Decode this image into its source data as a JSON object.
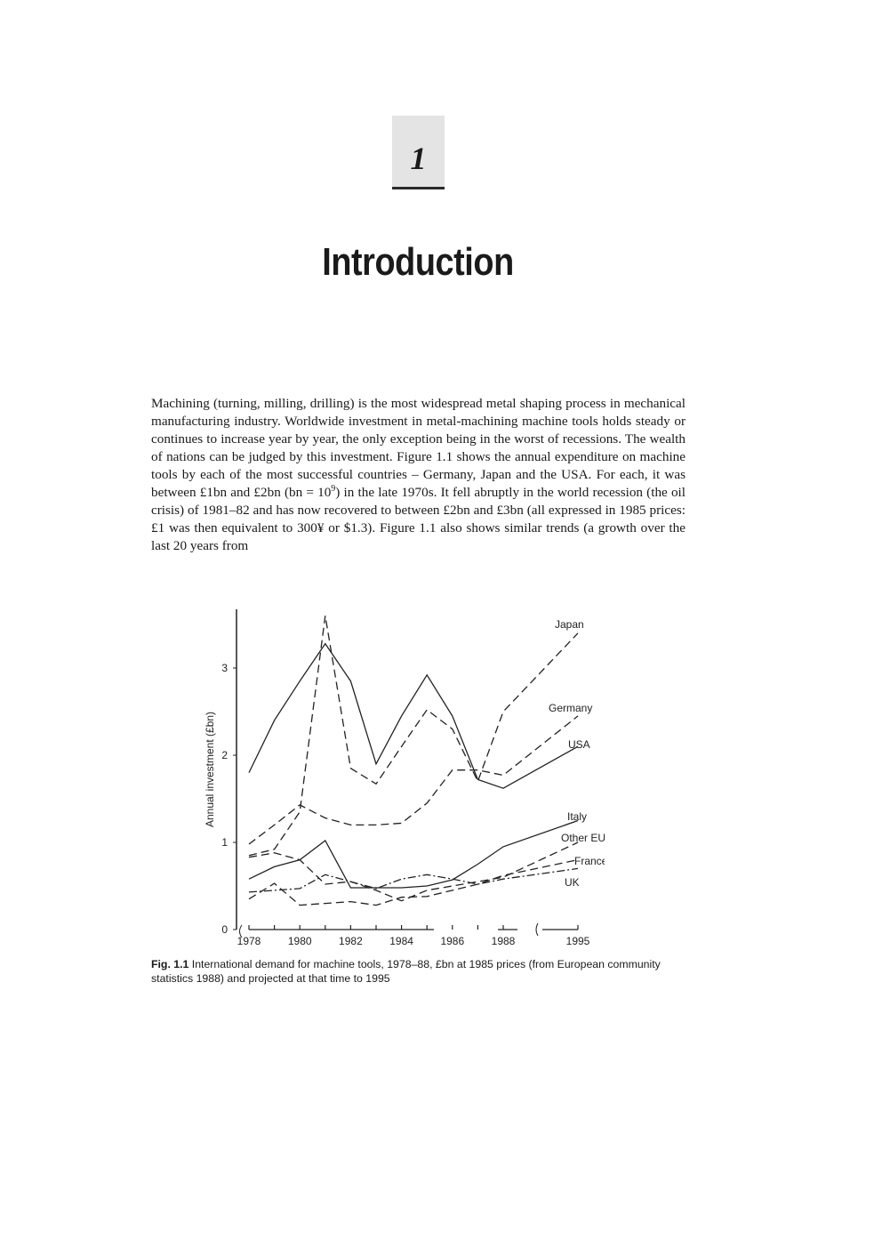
{
  "chapter": {
    "number": "1",
    "title": "Introduction"
  },
  "body": {
    "paragraph_part1": "Machining (turning, milling, drilling) is the most widespread metal shaping process in mechanical manufacturing industry. Worldwide investment in metal-machining machine tools holds steady or continues to increase year by year, the only exception being in the worst of recessions. The wealth of nations can be judged by this investment. Figure 1.1 shows the annual expenditure on machine tools by each of the most successful countries – Germany, Japan and the USA. For each, it was between £1bn and £2bn (bn = 10",
    "paragraph_sup": "9",
    "paragraph_part2": ") in the late 1970s. It fell abruptly in the world recession (the oil crisis) of 1981–82 and has now recovered to between £2bn and £3bn (all expressed in 1985 prices: £1 was then equivalent to 300¥ or $1.3). Figure 1.1 also shows similar trends (a growth over the last 20 years from"
  },
  "figure": {
    "label": "Fig. 1.1",
    "caption": "International demand for machine tools, 1978–88, £bn at 1985 prices (from European community statistics 1988) and projected at that time to 1995"
  },
  "chart_data": {
    "type": "line",
    "title": "",
    "xlabel": "",
    "ylabel": "Annual investment (£bn)",
    "x": [
      1978,
      1979,
      1980,
      1981,
      1982,
      1983,
      1984,
      1985,
      1986,
      1987,
      1988,
      1995
    ],
    "x_tick_labels": [
      "1978",
      "1980",
      "1982",
      "1984",
      "1986",
      "1988",
      "1995"
    ],
    "y_tick_labels": [
      "0",
      "1",
      "2",
      "3"
    ],
    "ylim": [
      0,
      3.6
    ],
    "x_axis_break": "between 1988 and 1995",
    "grid": false,
    "legend": "labels at line ends (right)",
    "series": [
      {
        "name": "Japan",
        "style": "dashed",
        "values": [
          0.85,
          0.92,
          1.35,
          3.6,
          1.85,
          1.67,
          2.1,
          2.52,
          2.3,
          1.7,
          2.5,
          3.4
        ]
      },
      {
        "name": "Germany",
        "style": "dashed",
        "values": [
          0.98,
          1.2,
          1.43,
          1.28,
          1.2,
          1.2,
          1.22,
          1.45,
          1.83,
          1.83,
          1.77,
          2.45
        ]
      },
      {
        "name": "USA",
        "style": "solid",
        "values": [
          1.8,
          2.4,
          2.85,
          3.28,
          2.85,
          1.9,
          2.45,
          2.92,
          2.45,
          1.72,
          1.62,
          2.1
        ]
      },
      {
        "name": "Italy",
        "style": "solid",
        "values": [
          0.58,
          0.72,
          0.8,
          1.02,
          0.48,
          0.48,
          0.48,
          0.5,
          0.57,
          0.75,
          0.95,
          1.25
        ]
      },
      {
        "name": "Other EU",
        "style": "dashed",
        "values": [
          0.83,
          0.88,
          0.8,
          0.52,
          0.55,
          0.45,
          0.33,
          0.45,
          0.5,
          0.55,
          0.6,
          1.0
        ]
      },
      {
        "name": "France",
        "style": "dashed",
        "values": [
          0.35,
          0.53,
          0.28,
          0.3,
          0.32,
          0.28,
          0.37,
          0.38,
          0.45,
          0.52,
          0.62,
          0.8
        ]
      },
      {
        "name": "UK",
        "style": "dash-dot",
        "values": [
          0.43,
          0.45,
          0.47,
          0.63,
          0.55,
          0.47,
          0.58,
          0.63,
          0.58,
          0.52,
          0.58,
          0.7
        ]
      }
    ]
  }
}
